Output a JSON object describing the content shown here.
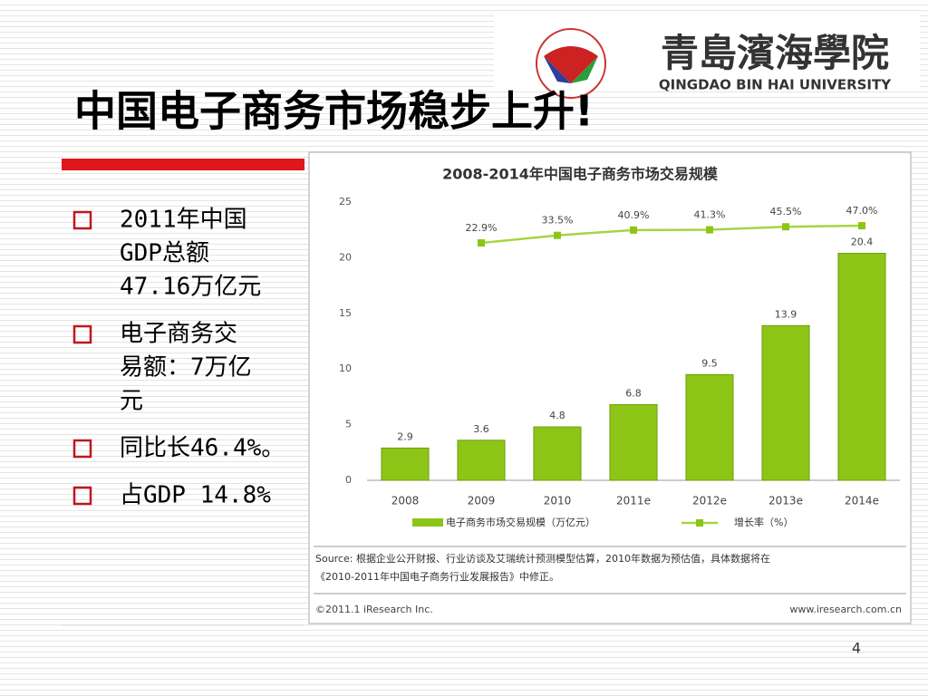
{
  "slide": {
    "title": "中国电子商务市场稳步上升!",
    "bullets": [
      [
        "2011年中国",
        "GDP总额",
        "47.16万亿元"
      ],
      [
        "电子商务交",
        "易额：7万亿",
        "元"
      ],
      [
        "同比长46.4%。"
      ],
      [
        "占GDP 14.8%"
      ]
    ],
    "page_number": "4",
    "logo": {
      "name": "青島濱海學院",
      "english": "QINGDAO BIN HAI UNIVERSITY"
    }
  },
  "chart_data": {
    "type": "bar",
    "title": "2008-2014年中国电子商务市场交易规模",
    "categories": [
      "2008",
      "2009",
      "2010",
      "2011e",
      "2012e",
      "2013e",
      "2014e"
    ],
    "series": [
      {
        "name": "电子商务市场交易规模（万亿元）",
        "type": "bar",
        "color": "#8cc516",
        "values": [
          2.9,
          3.6,
          4.8,
          6.8,
          9.5,
          13.9,
          20.4
        ]
      },
      {
        "name": "增长率（%）",
        "type": "line",
        "axis": "y2",
        "color": "#a8d442",
        "values": [
          null,
          22.9,
          33.5,
          40.9,
          41.3,
          45.5,
          47.0
        ],
        "value_labels": [
          null,
          "22.9%",
          "33.5%",
          "40.9%",
          "41.3%",
          "45.5%",
          "47.0%"
        ]
      }
    ],
    "ylim": [
      0,
      25
    ],
    "yticks": [
      0,
      5,
      10,
      15,
      20,
      25
    ],
    "y2lim": [
      -309,
      80
    ],
    "source": [
      "Source: 根据企业公开财报、行业访谈及艾瑞统计预测模型估算，2010年数据为预估值，具体数据将在",
      "《2010-2011年中国电子商务行业发展报告》中修正。"
    ],
    "copyright": "©2011.1 iResearch Inc.",
    "url": "www.iresearch.com.cn"
  }
}
